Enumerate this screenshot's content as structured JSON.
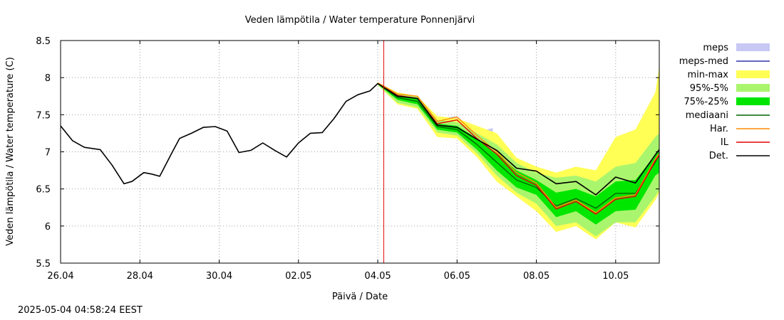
{
  "chart_data": {
    "type": "line",
    "title": "Veden lämpötila / Water temperature Ponnenjärvi",
    "xlabel": "Päivä / Date",
    "ylabel": "Veden lämpötila / Water temperature (C)",
    "x_range_days": [
      0,
      15.1
    ],
    "ylim": [
      5.5,
      8.5
    ],
    "grid": true,
    "legend_position": "right",
    "x_ticks": [
      {
        "x": 0,
        "label": "26.04"
      },
      {
        "x": 2,
        "label": "28.04"
      },
      {
        "x": 4,
        "label": "30.04"
      },
      {
        "x": 6,
        "label": "02.05"
      },
      {
        "x": 8,
        "label": "04.05"
      },
      {
        "x": 10,
        "label": "06.05"
      },
      {
        "x": 12,
        "label": "08.05"
      },
      {
        "x": 14,
        "label": "10.05"
      }
    ],
    "y_ticks": [
      {
        "y": 5.5,
        "label": "5.5"
      },
      {
        "y": 6,
        "label": "6"
      },
      {
        "y": 6.5,
        "label": "6.5"
      },
      {
        "y": 7,
        "label": "7"
      },
      {
        "y": 7.5,
        "label": "7.5"
      },
      {
        "y": 8,
        "label": "8"
      },
      {
        "y": 8.5,
        "label": "8.5"
      }
    ],
    "forecast_start": 8.15,
    "series": [
      {
        "name": "meps",
        "kind": "band",
        "color": "#c8c8f5",
        "x": [
          8.0,
          8.5,
          9.0,
          9.5,
          10.0,
          10.3,
          10.6,
          10.9
        ],
        "lower": [
          7.9,
          7.66,
          7.6,
          7.34,
          7.3,
          7.18,
          7.1,
          7.05
        ],
        "upper": [
          7.92,
          7.74,
          7.72,
          7.45,
          7.48,
          7.34,
          7.28,
          7.32
        ]
      },
      {
        "name": "meps-med",
        "kind": "line",
        "color": "#3333aa",
        "x": [],
        "y": []
      },
      {
        "name": "min-max",
        "kind": "band",
        "color": "#ffff55",
        "x": [
          8.0,
          8.5,
          9.0,
          9.5,
          10.0,
          10.5,
          11.0,
          11.5,
          12.0,
          12.5,
          13.0,
          13.5,
          14.0,
          14.5,
          15.0,
          15.1
        ],
        "lower": [
          7.9,
          7.64,
          7.58,
          7.2,
          7.18,
          6.93,
          6.6,
          6.4,
          6.2,
          5.92,
          6.0,
          5.82,
          6.05,
          5.98,
          6.35,
          6.45
        ],
        "upper": [
          7.93,
          7.8,
          7.75,
          7.48,
          7.45,
          7.35,
          7.25,
          6.92,
          6.8,
          6.72,
          6.8,
          6.75,
          7.2,
          7.3,
          7.8,
          8.15
        ]
      },
      {
        "name": "95%-5%",
        "kind": "band",
        "color": "#aaf56e",
        "x": [
          8.0,
          8.5,
          9.0,
          9.5,
          10.0,
          10.5,
          11.0,
          11.5,
          12.0,
          12.5,
          13.0,
          13.5,
          14.0,
          14.5,
          15.0,
          15.1
        ],
        "lower": [
          7.9,
          7.66,
          7.6,
          7.26,
          7.22,
          6.98,
          6.68,
          6.45,
          6.3,
          6.0,
          6.05,
          5.86,
          6.05,
          6.05,
          6.4,
          6.48
        ],
        "upper": [
          7.93,
          7.78,
          7.74,
          7.43,
          7.4,
          7.25,
          7.1,
          6.85,
          6.72,
          6.65,
          6.68,
          6.6,
          6.8,
          6.85,
          7.2,
          7.25
        ]
      },
      {
        "name": "75%-25%",
        "kind": "band",
        "color": "#00e600",
        "x": [
          8.0,
          8.5,
          9.0,
          9.5,
          10.0,
          10.5,
          11.0,
          11.5,
          12.0,
          12.5,
          13.0,
          13.5,
          14.0,
          14.5,
          15.0,
          15.1
        ],
        "lower": [
          7.91,
          7.7,
          7.64,
          7.3,
          7.26,
          7.03,
          6.75,
          6.52,
          6.42,
          6.12,
          6.2,
          6.02,
          6.2,
          6.22,
          6.68,
          6.72
        ],
        "upper": [
          7.93,
          7.76,
          7.72,
          7.38,
          7.35,
          7.18,
          6.98,
          6.75,
          6.62,
          6.45,
          6.5,
          6.4,
          6.6,
          6.62,
          6.96,
          7.05
        ]
      },
      {
        "name": "mediaani",
        "kind": "line",
        "color": "#006400",
        "x": [
          8.0,
          8.5,
          9.0,
          9.5,
          10.0,
          10.5,
          11.0,
          11.5,
          12.0,
          12.5,
          13.0,
          13.5,
          14.0,
          14.5,
          15.0,
          15.1
        ],
        "y": [
          7.92,
          7.73,
          7.68,
          7.34,
          7.3,
          7.1,
          6.86,
          6.62,
          6.52,
          6.27,
          6.37,
          6.24,
          6.44,
          6.44,
          6.86,
          6.96
        ]
      },
      {
        "name": "Har.",
        "kind": "line",
        "color": "#ff8c00",
        "x": [
          8.0,
          8.5,
          9.0,
          9.5,
          10.0,
          10.5,
          11.0,
          11.5,
          12.0,
          12.5,
          13.0,
          13.5,
          14.0,
          14.5,
          15.0,
          15.1
        ],
        "y": [
          7.93,
          7.78,
          7.75,
          7.41,
          7.47,
          7.22,
          7.0,
          6.72,
          6.58,
          6.25,
          6.35,
          6.18,
          6.38,
          6.42,
          6.9,
          6.98
        ]
      },
      {
        "name": "IL",
        "kind": "line",
        "color": "#e00000",
        "x": [
          8.0,
          8.5,
          9.0,
          9.5,
          10.0,
          10.5,
          11.0,
          11.5,
          12.0,
          12.5,
          13.0,
          13.5,
          14.0,
          14.5,
          15.0,
          15.1
        ],
        "y": [
          7.92,
          7.76,
          7.72,
          7.38,
          7.43,
          7.18,
          6.97,
          6.68,
          6.55,
          6.23,
          6.33,
          6.16,
          6.36,
          6.4,
          6.88,
          6.95
        ]
      },
      {
        "name": "Det.",
        "kind": "line",
        "color": "#000000",
        "x": [
          0.0,
          0.3,
          0.6,
          1.0,
          1.3,
          1.6,
          1.8,
          2.1,
          2.3,
          2.5,
          2.8,
          3.0,
          3.3,
          3.6,
          3.9,
          4.2,
          4.5,
          4.8,
          5.1,
          5.4,
          5.7,
          6.0,
          6.3,
          6.6,
          6.9,
          7.2,
          7.5,
          7.8,
          8.0,
          8.5,
          9.0,
          9.5,
          10.0,
          10.5,
          11.0,
          11.5,
          12.0,
          12.5,
          13.0,
          13.5,
          14.0,
          14.5,
          15.0,
          15.1
        ],
        "y": [
          7.35,
          7.15,
          7.06,
          7.03,
          6.82,
          6.57,
          6.6,
          6.72,
          6.7,
          6.67,
          6.98,
          7.18,
          7.25,
          7.33,
          7.34,
          7.28,
          6.99,
          7.02,
          7.12,
          7.02,
          6.93,
          7.12,
          7.25,
          7.26,
          7.45,
          7.68,
          7.77,
          7.82,
          7.92,
          7.75,
          7.72,
          7.36,
          7.33,
          7.17,
          7.02,
          6.78,
          6.74,
          6.57,
          6.6,
          6.42,
          6.66,
          6.58,
          6.96,
          7.03
        ]
      }
    ]
  },
  "footer": {
    "timestamp": "2025-05-04 04:58:24 EEST"
  }
}
